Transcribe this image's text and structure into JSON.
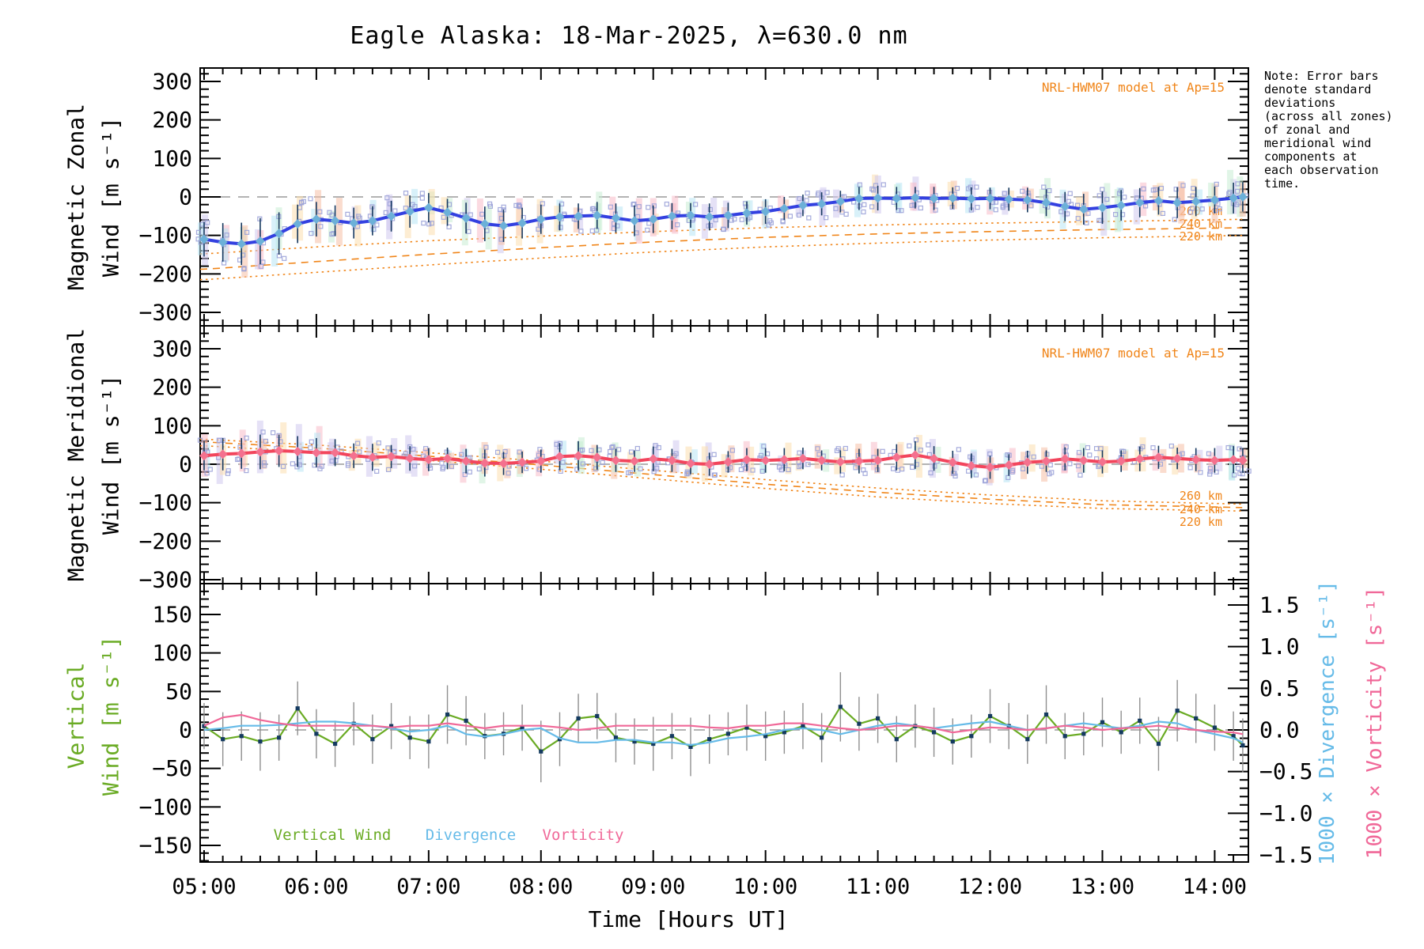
{
  "title": "Eagle Alaska: 18-Mar-2025, λ=630.0 nm",
  "note": {
    "lines": [
      "Note: Error bars",
      "denote standard",
      "deviations",
      "(across all zones)",
      "of zonal and",
      "meridional wind",
      "components at",
      "each observation",
      "time."
    ]
  },
  "model_annotation": "NRL-HWM07 model at Ap=15",
  "altitude_labels": [
    "260 km",
    "240 km",
    "220 km"
  ],
  "x_axis": {
    "title": "Time [Hours UT]",
    "tick_labels": [
      "05:00",
      "06:00",
      "07:00",
      "08:00",
      "09:00",
      "10:00",
      "11:00",
      "12:00",
      "13:00",
      "14:00"
    ],
    "tick_hours": [
      5,
      6,
      7,
      8,
      9,
      10,
      11,
      12,
      13,
      14
    ],
    "range_hours": [
      4.965,
      14.3
    ]
  },
  "panels": {
    "zonal": {
      "ylabel_lines": [
        "Magnetic Zonal",
        "Wind [m s⁻¹]"
      ],
      "tick_labels": [
        "300",
        "200",
        "100",
        "0",
        "−100",
        "−200",
        "−300"
      ],
      "tick_values": [
        300,
        200,
        100,
        0,
        -100,
        -200,
        -300
      ]
    },
    "meridional": {
      "ylabel_lines": [
        "Magnetic Meridional",
        "Wind [m s⁻¹]"
      ],
      "tick_labels": [
        "300",
        "200",
        "100",
        "0",
        "−100",
        "−200",
        "−300"
      ],
      "tick_values": [
        300,
        200,
        100,
        0,
        -100,
        -200,
        -300
      ]
    },
    "bottom": {
      "ylabel_lines": [
        "Vertical",
        "Wind [m s⁻¹]"
      ],
      "tick_labels": [
        "150",
        "100",
        "50",
        "0",
        "−50",
        "−100",
        "−150"
      ],
      "tick_values": [
        150,
        100,
        50,
        0,
        -50,
        -100,
        -150
      ],
      "right_axis": {
        "divergence_label": "1000 × Divergence [s⁻¹]",
        "vorticity_label": "1000 × Vorticity [s⁻¹]",
        "tick_labels": [
          "1.5",
          "1.0",
          "0.5",
          "0.0",
          "−0.5",
          "−1.0",
          "−1.5"
        ],
        "tick_values": [
          1.5,
          1.0,
          0.5,
          0.0,
          -0.5,
          -1.0,
          -1.5
        ]
      },
      "legend": [
        {
          "label": "Vertical Wind",
          "color": "#6aab24"
        },
        {
          "label": "Divergence",
          "color": "#66bbe8"
        },
        {
          "label": "Vorticity",
          "color": "#f06898"
        }
      ]
    }
  },
  "colors": {
    "zonal_line": "#3340e0",
    "zonal_marker": "#6cb0d8",
    "meridional_line": "#f2455c",
    "meridional_marker": "#f4718e",
    "error_bar": "#16395f",
    "model_orange": "#f08519",
    "zero_dash": "#9a9a9a",
    "vertical_green": "#6aab24",
    "divergence_blue": "#66bbe8",
    "vorticity_pink": "#f06898",
    "bottom_error_gray": "#8f8f8f",
    "bottom_marker": "#143a60",
    "scatter_square": "#9ba2d8",
    "scatter_bars": [
      "#f6bfa6",
      "#fbdfae",
      "#c8ecd4",
      "#b8e6f4",
      "#cfc8ee",
      "#f7bcc8"
    ]
  },
  "chart_data": [
    {
      "type": "line",
      "title": "Magnetic Zonal Wind [m s⁻¹] vs Time [Hours UT]",
      "ylabel": "Magnetic Zonal Wind [m s⁻¹]",
      "ylim": [
        -330,
        330
      ],
      "x_hours": [
        5.0,
        5.167,
        5.333,
        5.5,
        5.667,
        5.833,
        6.0,
        6.167,
        6.333,
        6.5,
        6.667,
        6.833,
        7.0,
        7.167,
        7.333,
        7.5,
        7.667,
        7.833,
        8.0,
        8.167,
        8.333,
        8.5,
        8.667,
        8.833,
        9.0,
        9.167,
        9.333,
        9.5,
        9.667,
        9.833,
        10.0,
        10.167,
        10.333,
        10.5,
        10.667,
        10.833,
        11.0,
        11.167,
        11.333,
        11.5,
        11.667,
        11.833,
        12.0,
        12.167,
        12.333,
        12.5,
        12.667,
        12.833,
        13.0,
        13.167,
        13.333,
        13.5,
        13.667,
        13.833,
        14.0,
        14.167,
        14.25
      ],
      "series": [
        {
          "name": "zonal_wind_observed",
          "values": [
            -110,
            -118,
            -122,
            -115,
            -95,
            -70,
            -58,
            -62,
            -68,
            -62,
            -50,
            -38,
            -28,
            -40,
            -55,
            -70,
            -75,
            -68,
            -58,
            -52,
            -50,
            -48,
            -55,
            -62,
            -58,
            -50,
            -48,
            -52,
            -48,
            -42,
            -38,
            -30,
            -22,
            -18,
            -12,
            -4,
            -3,
            -4,
            -2,
            -4,
            -3,
            -5,
            -4,
            -6,
            -8,
            -15,
            -25,
            -32,
            -28,
            -22,
            -15,
            -10,
            -15,
            -12,
            -8,
            -3,
            0
          ],
          "errors": [
            45,
            50,
            55,
            60,
            55,
            50,
            45,
            40,
            40,
            38,
            40,
            42,
            38,
            35,
            40,
            45,
            42,
            40,
            38,
            35,
            33,
            35,
            38,
            40,
            36,
            34,
            32,
            35,
            33,
            30,
            32,
            30,
            28,
            30,
            28,
            30,
            32,
            30,
            28,
            30,
            28,
            30,
            28,
            30,
            32,
            35,
            38,
            40,
            42,
            40,
            38,
            36,
            40,
            38,
            35,
            40,
            38
          ]
        }
      ],
      "model_lines": [
        {
          "label": "260 km",
          "style": "dotted",
          "points": [
            [
              5,
              -148
            ],
            [
              6,
              -130
            ],
            [
              7,
              -114
            ],
            [
              8,
              -102
            ],
            [
              9,
              -90
            ],
            [
              10,
              -80
            ],
            [
              11,
              -73
            ],
            [
              12,
              -68
            ],
            [
              13,
              -64
            ],
            [
              14.3,
              -58
            ]
          ]
        },
        {
          "label": "240 km",
          "style": "dashed",
          "points": [
            [
              5,
              -188
            ],
            [
              6,
              -168
            ],
            [
              7,
              -149
            ],
            [
              8,
              -132
            ],
            [
              9,
              -117
            ],
            [
              10,
              -105
            ],
            [
              11,
              -96
            ],
            [
              12,
              -90
            ],
            [
              13,
              -85
            ],
            [
              14.3,
              -80
            ]
          ]
        },
        {
          "label": "220 km",
          "style": "dotted",
          "points": [
            [
              5,
              -215
            ],
            [
              6,
              -196
            ],
            [
              7,
              -177
            ],
            [
              8,
              -159
            ],
            [
              9,
              -143
            ],
            [
              10,
              -130
            ],
            [
              11,
              -120
            ],
            [
              12,
              -112
            ],
            [
              13,
              -106
            ],
            [
              14.3,
              -100
            ]
          ]
        }
      ]
    },
    {
      "type": "line",
      "title": "Magnetic Meridional Wind [m s⁻¹] vs Time [Hours UT]",
      "ylabel": "Magnetic Meridional Wind [m s⁻¹]",
      "ylim": [
        -330,
        330
      ],
      "x_hours": [
        5.0,
        5.167,
        5.333,
        5.5,
        5.667,
        5.833,
        6.0,
        6.167,
        6.333,
        6.5,
        6.667,
        6.833,
        7.0,
        7.167,
        7.333,
        7.5,
        7.667,
        7.833,
        8.0,
        8.167,
        8.333,
        8.5,
        8.667,
        8.833,
        9.0,
        9.167,
        9.333,
        9.5,
        9.667,
        9.833,
        10.0,
        10.167,
        10.333,
        10.5,
        10.667,
        10.833,
        11.0,
        11.167,
        11.333,
        11.5,
        11.667,
        11.833,
        12.0,
        12.167,
        12.333,
        12.5,
        12.667,
        12.833,
        13.0,
        13.167,
        13.333,
        13.5,
        13.667,
        13.833,
        14.0,
        14.167,
        14.25
      ],
      "series": [
        {
          "name": "meridional_wind_observed",
          "values": [
            22,
            26,
            28,
            32,
            35,
            33,
            30,
            30,
            22,
            18,
            20,
            15,
            12,
            15,
            8,
            3,
            2,
            5,
            8,
            20,
            22,
            18,
            10,
            8,
            14,
            10,
            2,
            0,
            6,
            12,
            10,
            12,
            15,
            10,
            6,
            8,
            10,
            18,
            24,
            15,
            5,
            -4,
            -8,
            -2,
            5,
            8,
            14,
            10,
            6,
            8,
            14,
            18,
            15,
            12,
            10,
            12,
            10
          ],
          "errors": [
            38,
            42,
            40,
            45,
            42,
            40,
            38,
            35,
            32,
            35,
            30,
            32,
            30,
            28,
            32,
            35,
            30,
            28,
            30,
            35,
            38,
            32,
            30,
            28,
            32,
            30,
            28,
            30,
            28,
            30,
            32,
            30,
            28,
            26,
            30,
            32,
            30,
            34,
            36,
            32,
            30,
            32,
            30,
            28,
            30,
            28,
            30,
            32,
            30,
            28,
            32,
            30,
            28,
            30,
            32,
            35,
            32
          ]
        }
      ],
      "model_lines": [
        {
          "label": "260 km",
          "style": "dotted",
          "points": [
            [
              5,
              65
            ],
            [
              6,
              50
            ],
            [
              7,
              30
            ],
            [
              8,
              8
            ],
            [
              9,
              -16
            ],
            [
              10,
              -40
            ],
            [
              11,
              -62
            ],
            [
              12,
              -80
            ],
            [
              13,
              -95
            ],
            [
              14.3,
              -104
            ]
          ]
        },
        {
          "label": "240 km",
          "style": "dashed",
          "points": [
            [
              5,
              58
            ],
            [
              6,
              42
            ],
            [
              7,
              21
            ],
            [
              8,
              -2
            ],
            [
              9,
              -27
            ],
            [
              10,
              -52
            ],
            [
              11,
              -73
            ],
            [
              12,
              -91
            ],
            [
              13,
              -105
            ],
            [
              14.3,
              -113
            ]
          ]
        },
        {
          "label": "220 km",
          "style": "dotted",
          "points": [
            [
              5,
              48
            ],
            [
              6,
              31
            ],
            [
              7,
              10
            ],
            [
              8,
              -13
            ],
            [
              9,
              -38
            ],
            [
              10,
              -63
            ],
            [
              11,
              -85
            ],
            [
              12,
              -102
            ],
            [
              13,
              -115
            ],
            [
              14.3,
              -122
            ]
          ]
        }
      ]
    },
    {
      "type": "line",
      "title": "Vertical Wind / Divergence / Vorticity vs Time [Hours UT]",
      "ylabel": "Vertical Wind [m s⁻¹]",
      "ylabel_right": [
        "1000 × Divergence [s⁻¹]",
        "1000 × Vorticity [s⁻¹]"
      ],
      "ylim_left": [
        -165,
        165
      ],
      "ylim_right": [
        -1.5,
        1.5
      ],
      "x_hours": [
        5.0,
        5.167,
        5.333,
        5.5,
        5.667,
        5.833,
        6.0,
        6.167,
        6.333,
        6.5,
        6.667,
        6.833,
        7.0,
        7.167,
        7.333,
        7.5,
        7.667,
        7.833,
        8.0,
        8.167,
        8.333,
        8.5,
        8.667,
        8.833,
        9.0,
        9.167,
        9.333,
        9.5,
        9.667,
        9.833,
        10.0,
        10.167,
        10.333,
        10.5,
        10.667,
        10.833,
        11.0,
        11.167,
        11.333,
        11.5,
        11.667,
        11.833,
        12.0,
        12.167,
        12.333,
        12.5,
        12.667,
        12.833,
        13.0,
        13.167,
        13.333,
        13.5,
        13.667,
        13.833,
        14.0,
        14.167,
        14.25
      ],
      "series": [
        {
          "name": "vertical_wind",
          "axis": "left",
          "values": [
            5,
            -12,
            -8,
            -15,
            -10,
            28,
            -5,
            -18,
            8,
            -12,
            5,
            -10,
            -15,
            20,
            12,
            -8,
            -5,
            3,
            -28,
            -12,
            15,
            18,
            -10,
            -15,
            -18,
            -8,
            -22,
            -12,
            -5,
            3,
            -8,
            -3,
            5,
            -10,
            30,
            8,
            15,
            -12,
            5,
            -3,
            -15,
            -8,
            18,
            5,
            -12,
            20,
            -8,
            -5,
            10,
            -3,
            12,
            -18,
            25,
            15,
            3,
            -8,
            -20
          ],
          "errors": [
            30,
            35,
            32,
            38,
            30,
            35,
            32,
            30,
            28,
            32,
            30,
            28,
            35,
            38,
            32,
            30,
            28,
            30,
            40,
            35,
            32,
            30,
            32,
            30,
            35,
            30,
            38,
            32,
            28,
            30,
            32,
            28,
            30,
            32,
            45,
            35,
            32,
            30,
            28,
            32,
            30,
            28,
            35,
            30,
            32,
            38,
            30,
            28,
            32,
            28,
            30,
            35,
            40,
            32,
            30,
            32,
            35
          ]
        },
        {
          "name": "divergence_x1000",
          "axis": "right",
          "values": [
            0.0,
            0.02,
            0.05,
            0.05,
            0.06,
            0.08,
            0.1,
            0.1,
            0.08,
            0.05,
            0.02,
            -0.02,
            0.0,
            0.05,
            -0.05,
            -0.08,
            -0.05,
            0.0,
            0.02,
            -0.1,
            -0.15,
            -0.15,
            -0.12,
            -0.12,
            -0.15,
            -0.15,
            -0.18,
            -0.15,
            -0.1,
            -0.08,
            -0.05,
            0.0,
            0.02,
            0.0,
            -0.05,
            0.0,
            0.05,
            0.08,
            0.05,
            0.02,
            0.05,
            0.08,
            0.1,
            0.05,
            0.0,
            0.02,
            0.05,
            0.08,
            0.05,
            0.02,
            0.05,
            0.1,
            0.08,
            0.0,
            -0.05,
            -0.1,
            -0.15
          ]
        },
        {
          "name": "vorticity_x1000",
          "axis": "right",
          "values": [
            0.05,
            0.15,
            0.18,
            0.12,
            0.08,
            0.05,
            0.05,
            0.05,
            0.05,
            0.05,
            0.03,
            0.05,
            0.05,
            0.08,
            0.05,
            0.02,
            0.05,
            0.05,
            0.05,
            0.03,
            0.0,
            0.02,
            0.05,
            0.05,
            0.05,
            0.05,
            0.05,
            0.03,
            0.02,
            0.05,
            0.05,
            0.08,
            0.08,
            0.05,
            0.02,
            0.0,
            0.02,
            0.05,
            0.05,
            0.02,
            -0.03,
            0.0,
            0.03,
            0.02,
            0.0,
            0.02,
            0.05,
            0.03,
            0.0,
            0.02,
            0.03,
            0.05,
            0.02,
            0.0,
            -0.02,
            -0.03,
            -0.05
          ]
        }
      ]
    }
  ]
}
